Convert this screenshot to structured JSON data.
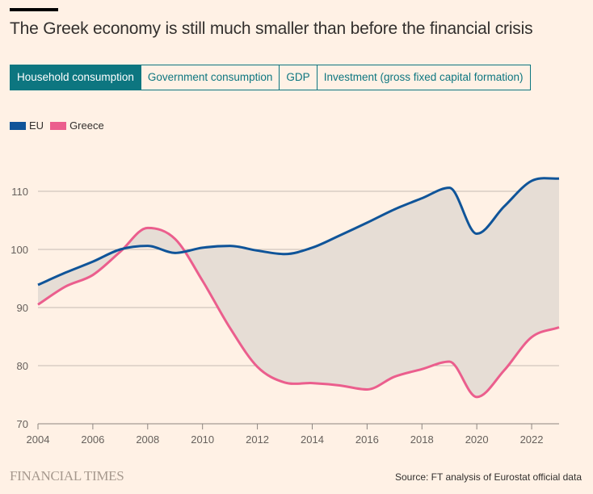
{
  "title": "The Greek economy is still much smaller than before the financial crisis",
  "tabs": [
    {
      "label": "Household consumption",
      "active": true
    },
    {
      "label": "Government consumption",
      "active": false
    },
    {
      "label": "GDP",
      "active": false
    },
    {
      "label": "Investment (gross fixed capital formation)",
      "active": false
    }
  ],
  "footer": {
    "brand": "FINANCIAL TIMES",
    "source": "Source: FT analysis of Eurostat official data"
  },
  "colors": {
    "eu": "#0f5499",
    "greece": "#eb5e8d",
    "fill": "#e6ddd5",
    "accent": "#0d7680"
  },
  "chart_data": {
    "type": "line",
    "title": "The Greek economy is still much smaller than before the financial crisis",
    "xlabel": "",
    "ylabel": "",
    "x": [
      2004,
      2005,
      2006,
      2007,
      2008,
      2009,
      2010,
      2011,
      2012,
      2013,
      2014,
      2015,
      2016,
      2017,
      2018,
      2019,
      2020,
      2021,
      2022,
      2023
    ],
    "series": [
      {
        "name": "EU",
        "values": [
          93.9,
          96.0,
          97.9,
          100.0,
          100.6,
          99.4,
          100.3,
          100.6,
          99.8,
          99.2,
          100.3,
          102.4,
          104.6,
          106.9,
          108.8,
          110.6,
          102.7,
          107.4,
          111.8,
          112.2
        ]
      },
      {
        "name": "Greece",
        "values": [
          90.5,
          93.6,
          95.6,
          99.6,
          103.7,
          101.8,
          94.6,
          86.5,
          79.8,
          77.1,
          77.0,
          76.6,
          75.9,
          78.1,
          79.4,
          80.7,
          74.6,
          79.2,
          84.9,
          86.6
        ]
      }
    ],
    "xticks": [
      "2004",
      "2006",
      "2008",
      "2010",
      "2012",
      "2014",
      "2016",
      "2018",
      "2020",
      "2022"
    ],
    "yticks": [
      "70",
      "80",
      "90",
      "100",
      "110"
    ],
    "xlim": [
      2004,
      2023
    ],
    "ylim": [
      70,
      114
    ],
    "grid": true,
    "legend": "top-left",
    "shaded_gap_between_series": true
  }
}
